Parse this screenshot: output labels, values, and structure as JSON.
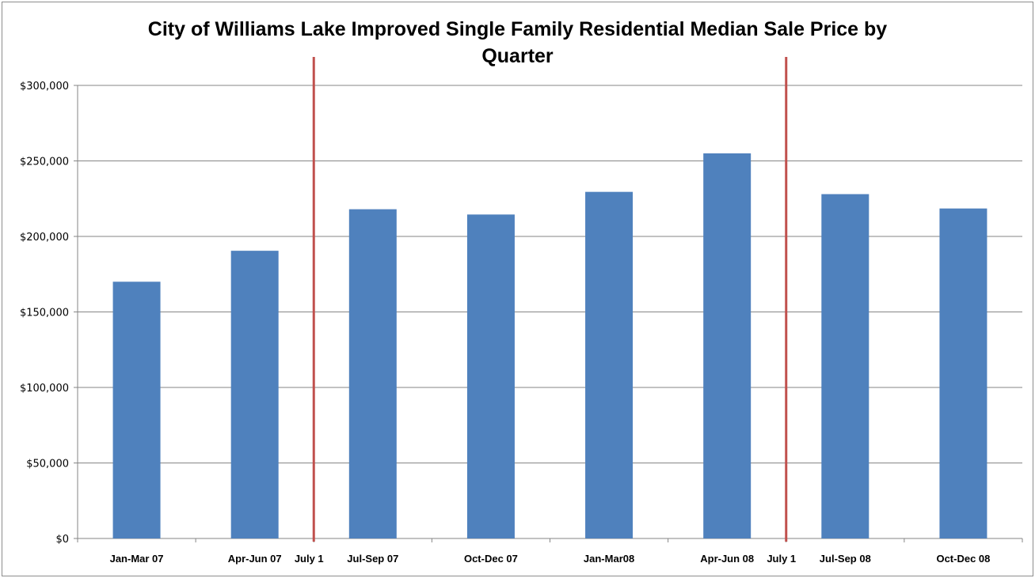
{
  "chart_data": {
    "type": "bar",
    "title": "City of Williams Lake Improved Single Family Residential Median Sale Price by Quarter",
    "title_lines": [
      "City of Williams Lake Improved Single Family Residential Median Sale Price by",
      "Quarter"
    ],
    "xlabel": "",
    "ylabel": "",
    "categories": [
      "Jan-Mar 07",
      "Apr-Jun 07",
      "Jul-Sep 07",
      "Oct-Dec 07",
      "Jan-Mar08",
      "Apr-Jun 08",
      "Jul-Sep 08",
      "Oct-Dec 08"
    ],
    "values": [
      170000,
      190500,
      218000,
      214500,
      229500,
      255000,
      228000,
      218500
    ],
    "bar_color": "#4f81bd",
    "ylim": [
      0,
      300000
    ],
    "yticks": [
      0,
      50000,
      100000,
      150000,
      200000,
      250000,
      300000
    ],
    "ytick_labels": [
      "$0",
      "$50,000",
      "$100,000",
      "$150,000",
      "$200,000",
      "$250,000",
      "$300,000"
    ],
    "grid": true,
    "legend": "none",
    "markers": [
      {
        "label": "July 1",
        "between": [
          "Apr-Jun 07",
          "Jul-Sep 07"
        ]
      },
      {
        "label": "July 1",
        "between": [
          "Apr-Jun 08",
          "Jul-Sep 08"
        ]
      }
    ],
    "marker_color": "#c0504d"
  }
}
